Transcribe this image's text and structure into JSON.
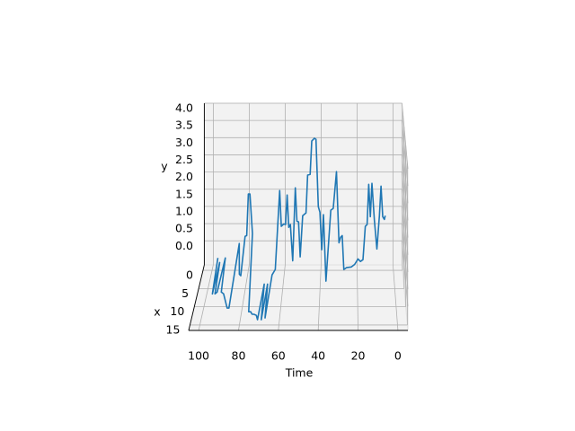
{
  "chart_data": {
    "type": "line3d",
    "time_label": "Time",
    "x_label": "x",
    "y_label": "y",
    "time_lim": [
      -5,
      105
    ],
    "time_ticks": [
      0,
      20,
      40,
      60,
      80,
      100
    ],
    "xlim": [
      -1.5,
      16.5
    ],
    "xticks": [
      0,
      5,
      10,
      15
    ],
    "ylim": [
      -0.7,
      4.0
    ],
    "yticks": [
      {
        "value": 0,
        "label": "0.0"
      },
      0.5,
      {
        "value": 1,
        "label": "1.0"
      },
      1.5,
      {
        "value": 2,
        "label": "2.0"
      },
      2.5,
      {
        "value": 3,
        "label": "3.0"
      },
      3.5,
      {
        "value": 4,
        "label": "4.0"
      }
    ],
    "grid": true,
    "series": [
      {
        "color": "#1f77b4",
        "time": [
          96.8,
          95.9,
          95.5,
          94.5,
          93.6,
          92.7,
          91.4,
          90.0,
          86.8,
          85.9,
          85.0,
          83.6,
          82.7,
          81.8,
          80.9,
          80.0,
          79.1,
          77.7,
          75.5,
          74.5,
          73.6,
          72.7,
          71.4,
          70.5,
          69.5,
          68.6,
          67.7,
          66.8,
          65.9,
          64.5,
          62.7,
          61.8,
          60.5,
          59.5,
          58.6,
          57.7,
          56.8,
          55.5,
          54.1,
          53.2,
          52.3,
          51.4,
          50.0,
          48.2,
          47.3,
          45.9,
          45.0,
          43.6,
          42.7,
          41.4,
          40.5,
          39.5,
          38.6,
          36.8,
          34.5,
          33.2,
          31.4,
          30.0,
          29.1,
          28.2,
          27.3,
          25.9,
          23.2,
          21.4,
          19.5,
          18.2,
          16.8,
          15.5,
          14.5,
          13.6,
          12.7,
          11.8,
          10.5,
          9.1,
          7.7,
          6.8,
          5.9,
          5.0,
          4.5
        ],
        "x": [
          0,
          9.3,
          0.7,
          9.3,
          8.8,
          0,
          8.8,
          9.3,
          13.2,
          13.2,
          0,
          3.9,
          4.3,
          0,
          0,
          0,
          0,
          0,
          14.2,
          14.2,
          14.9,
          14.9,
          15.2,
          16.4,
          6.6,
          16.4,
          6.6,
          15.9,
          4.1,
          2.6,
          0,
          0,
          0,
          0,
          0,
          0,
          0,
          0,
          0,
          0,
          0,
          0,
          0,
          0,
          0,
          0,
          0,
          0,
          0,
          0,
          0,
          0,
          0,
          5.8,
          0,
          0,
          0,
          0,
          0,
          0,
          2.6,
          2.1,
          1.9,
          1.2,
          0,
          0.4,
          0,
          0,
          0,
          0,
          0,
          0,
          0,
          0,
          0,
          0,
          0,
          0,
          0
        ],
        "y": [
          -0.34,
          -0.4,
          -0.4,
          -0.4,
          -0.4,
          -0.34,
          -0.4,
          -0.4,
          -0.4,
          -0.4,
          0.08,
          -0.4,
          -0.4,
          0.29,
          0.31,
          1.52,
          1.52,
          0.37,
          -0.4,
          -0.4,
          -0.4,
          -0.4,
          -0.4,
          -0.4,
          -0.4,
          -0.4,
          -0.4,
          -0.4,
          -0.4,
          -0.4,
          1.62,
          0.58,
          0.65,
          0.63,
          1.49,
          0.55,
          0.63,
          -0.42,
          1.7,
          0.73,
          0.71,
          -0.31,
          0.89,
          0.97,
          2.07,
          2.09,
          3.06,
          3.14,
          3.11,
          1.15,
          0.99,
          -0.1,
          0.92,
          -0.4,
          1.05,
          1.1,
          2.17,
          0.1,
          0.26,
          0.31,
          -0.4,
          -0.4,
          -0.4,
          -0.4,
          -0.37,
          -0.4,
          -0.39,
          0.58,
          0.63,
          1.8,
          0.86,
          1.83,
          0.76,
          -0.08,
          0.89,
          1.75,
          0.86,
          0.78,
          0.89
        ]
      }
    ]
  }
}
